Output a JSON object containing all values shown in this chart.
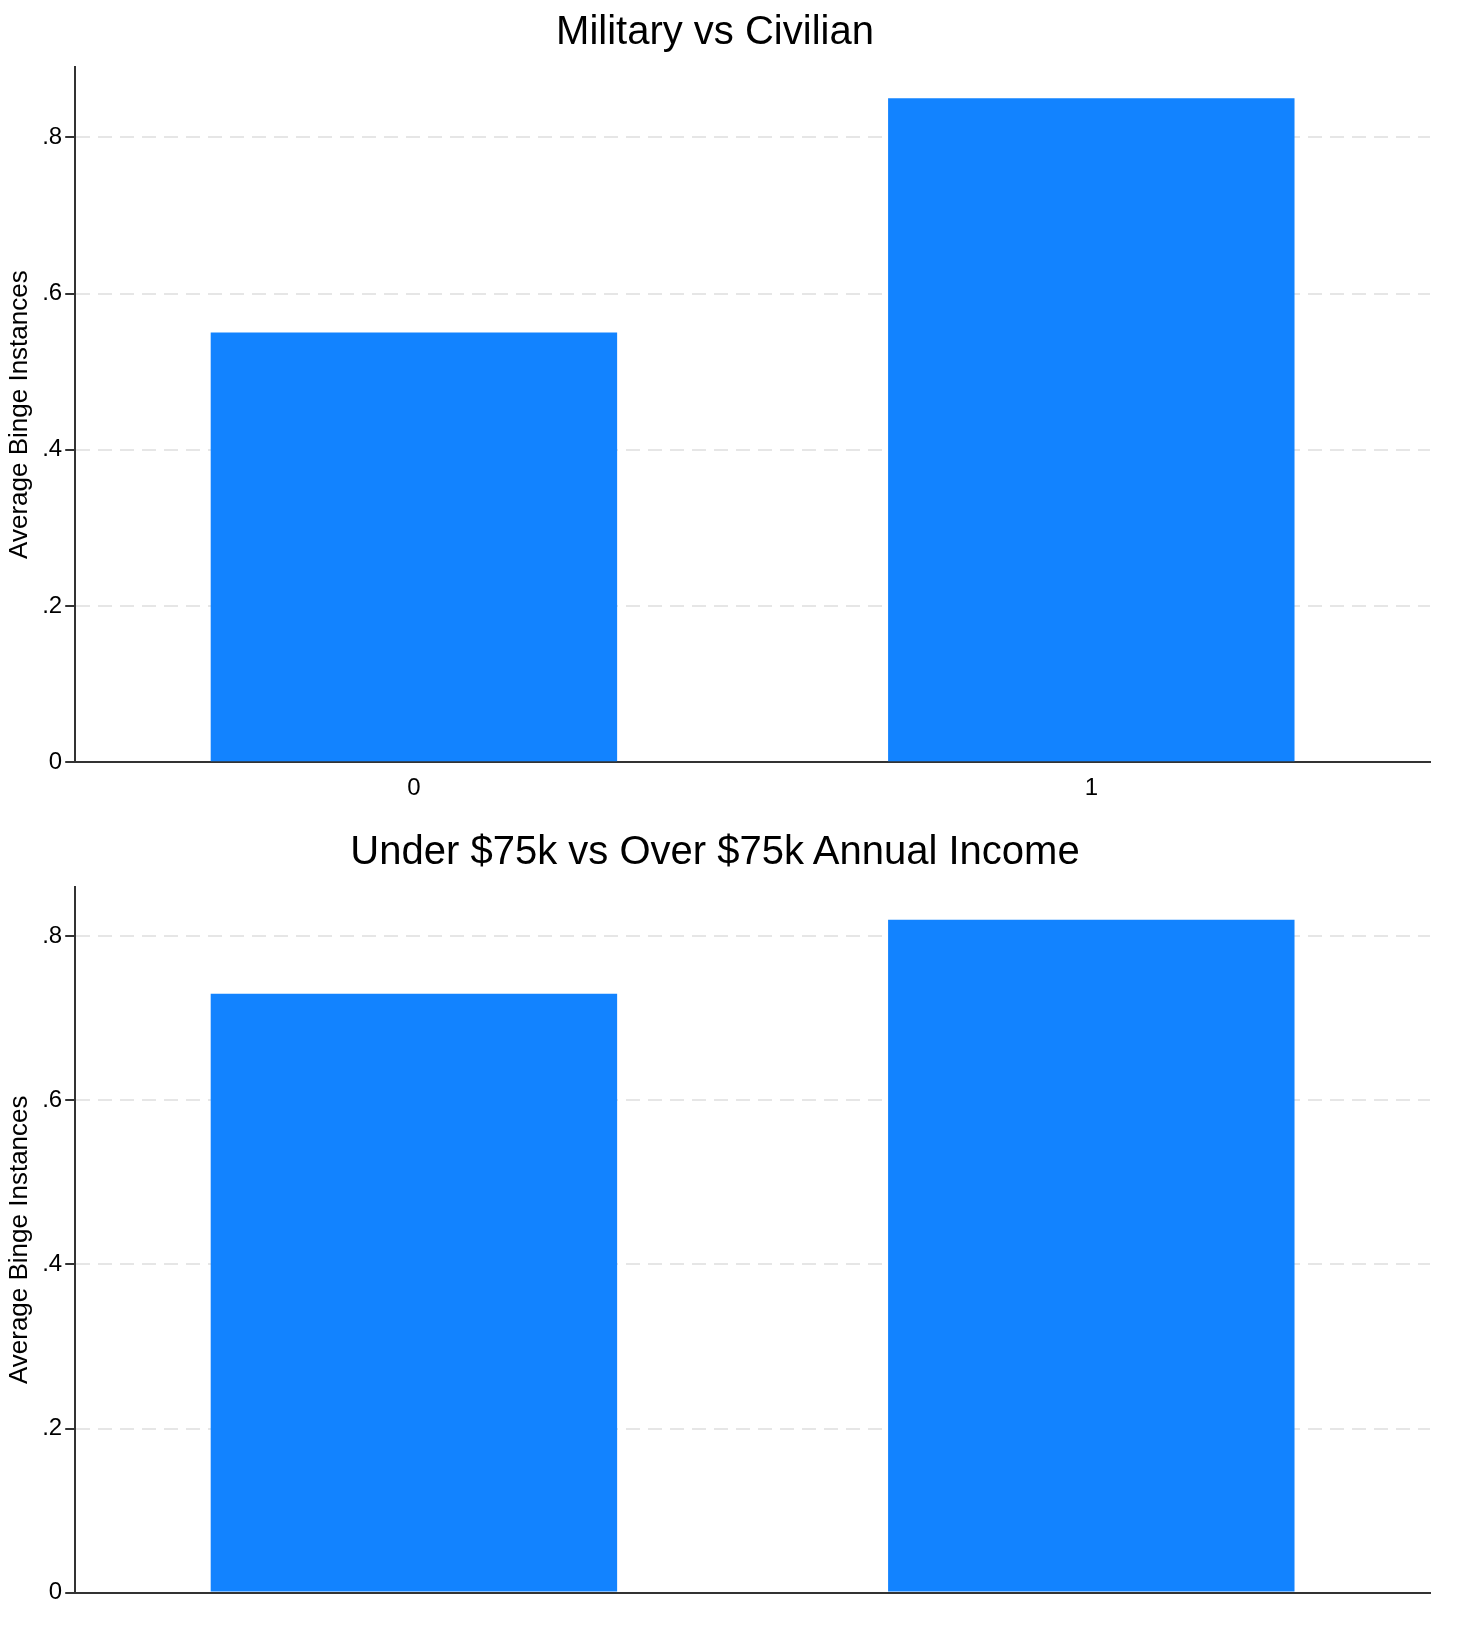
{
  "chart_data": [
    {
      "type": "bar",
      "title": "Military vs Civilian",
      "ylabel": "Average Binge Instances",
      "categories": [
        "0",
        "1"
      ],
      "values": [
        0.55,
        0.85
      ],
      "color": "#1283ff",
      "ylim": [
        0,
        0.89
      ],
      "yticks": [
        0,
        {
          "value": 0.2,
          "label": ".2"
        },
        {
          "value": 0.4,
          "label": ".4"
        },
        {
          "value": 0.6,
          "label": ".6"
        },
        {
          "value": 0.8,
          "label": ".8"
        }
      ],
      "grid": "y"
    },
    {
      "type": "bar",
      "title": "Under $75k vs Over $75k Annual Income",
      "ylabel": "Average Binge Instances",
      "categories": [
        null,
        null
      ],
      "values": [
        0.73,
        0.82
      ],
      "color": "#1283ff",
      "ylim": [
        0,
        0.86
      ],
      "yticks": [
        0,
        {
          "value": 0.2,
          "label": ".2"
        },
        {
          "value": 0.4,
          "label": ".4"
        },
        {
          "value": 0.6,
          "label": ".6"
        },
        {
          "value": 0.8,
          "label": ".8"
        }
      ],
      "grid": "y",
      "tick_labels": "y"
    }
  ]
}
